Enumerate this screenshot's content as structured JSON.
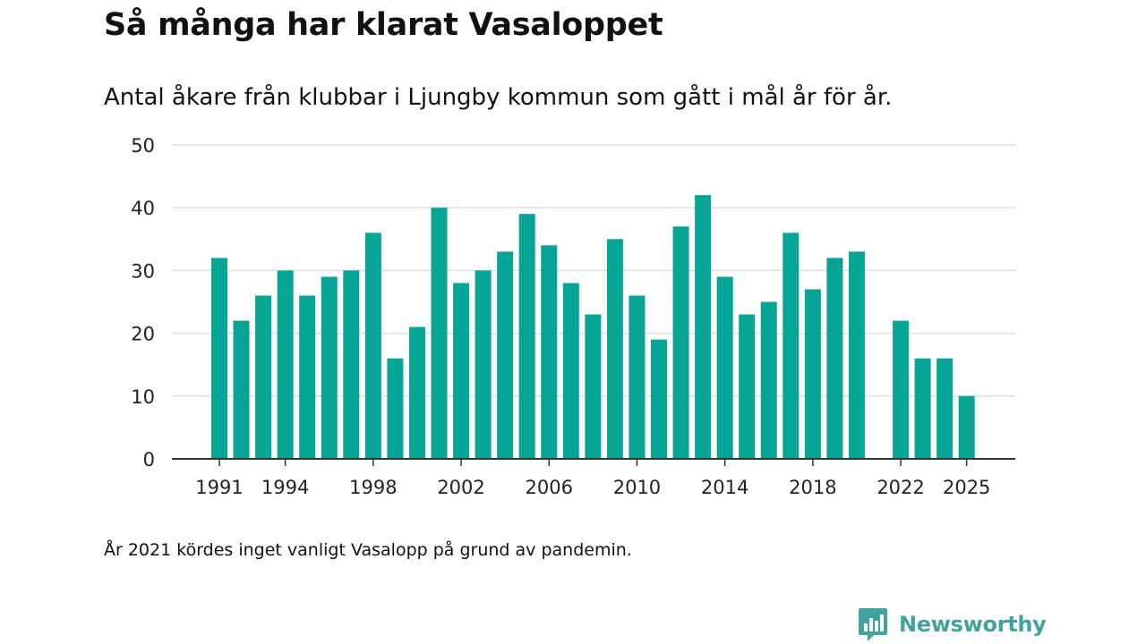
{
  "chart_data": {
    "type": "bar",
    "title": "Så många har klarat Vasaloppet",
    "subtitle": "Antal åkare från klubbar i Ljungby kommun som gått i mål år för år.",
    "xlabel": "",
    "ylabel": "",
    "ylim": [
      0,
      50
    ],
    "yticks": [
      0,
      10,
      20,
      30,
      40,
      50
    ],
    "xticks": [
      1991,
      1994,
      1998,
      2002,
      2006,
      2010,
      2014,
      2018,
      2022,
      2025
    ],
    "categories": [
      1991,
      1992,
      1993,
      1994,
      1995,
      1996,
      1997,
      1998,
      1999,
      2000,
      2001,
      2002,
      2003,
      2004,
      2005,
      2006,
      2007,
      2008,
      2009,
      2010,
      2011,
      2012,
      2013,
      2014,
      2015,
      2016,
      2017,
      2018,
      2019,
      2020,
      2021,
      2022,
      2023,
      2024,
      2025
    ],
    "values": [
      32,
      22,
      26,
      30,
      26,
      29,
      30,
      36,
      16,
      21,
      40,
      28,
      30,
      33,
      39,
      34,
      28,
      23,
      35,
      26,
      19,
      37,
      42,
      29,
      23,
      25,
      36,
      27,
      32,
      33,
      null,
      22,
      16,
      16,
      10
    ],
    "grid": true,
    "bar_color": "#07a596",
    "grid_color": "#dddddd",
    "axis_color": "#333333"
  },
  "note": "År 2021 kördes inget vanligt Vasalopp på grund av pandemin.",
  "brand": {
    "name": "Newsworthy",
    "icon": "newsworthy-logo-icon",
    "color": "#3fa3a0"
  }
}
